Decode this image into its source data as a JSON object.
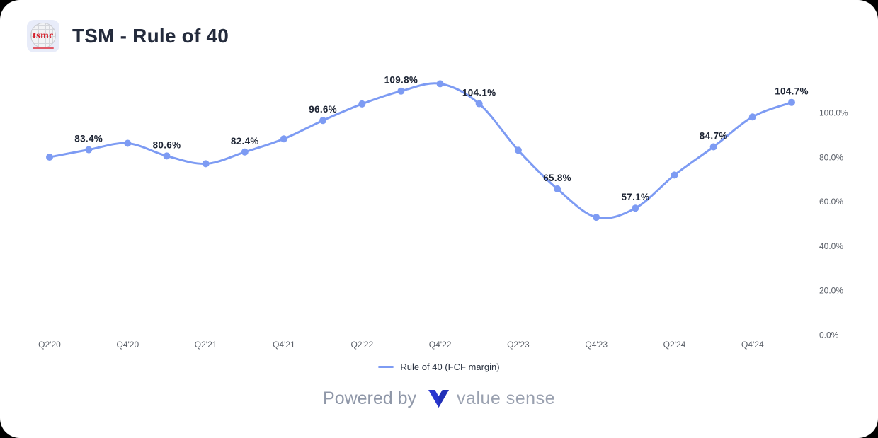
{
  "header": {
    "title": "TSM - Rule of 40",
    "logo_text": "tsmc"
  },
  "chart_data": {
    "type": "line",
    "title": "TSM - Rule of 40",
    "x": [
      "Q2'20",
      "Q3'20",
      "Q4'20",
      "Q1'21",
      "Q2'21",
      "Q3'21",
      "Q4'21",
      "Q1'22",
      "Q2'22",
      "Q3'22",
      "Q4'22",
      "Q1'23",
      "Q2'23",
      "Q3'23",
      "Q4'23",
      "Q1'24",
      "Q2'24",
      "Q3'24",
      "Q4'24",
      "Q1'25"
    ],
    "series": [
      {
        "name": "Rule of 40 (FCF margin)",
        "values": [
          80.1,
          83.4,
          86.3,
          80.6,
          77.1,
          82.4,
          88.3,
          96.6,
          104.0,
          109.8,
          113.1,
          104.1,
          83.2,
          65.8,
          53.0,
          57.1,
          72.0,
          84.7,
          98.2,
          104.7
        ],
        "point_labels": [
          "",
          "83.4%",
          "",
          "80.6%",
          "",
          "82.4%",
          "",
          "96.6%",
          "",
          "109.8%",
          "",
          "104.1%",
          "",
          "65.8%",
          "",
          "57.1%",
          "",
          "84.7%",
          "",
          "104.7%"
        ]
      }
    ],
    "x_tick_labels": [
      "Q2'20",
      "Q4'20",
      "Q2'21",
      "Q4'21",
      "Q2'22",
      "Q4'22",
      "Q2'23",
      "Q4'23",
      "Q2'24",
      "Q4'24"
    ],
    "x_tick_every": 2,
    "y_tick_labels": [
      "100.0%",
      "80.0%",
      "60.0%",
      "40.0%",
      "20.0%",
      "0.0%"
    ],
    "ylim": [
      0,
      119
    ],
    "y_axis_side": "right",
    "grid": false,
    "legend_position": "bottom",
    "line_color": "#7d9bf3",
    "label_color": "#1e2534",
    "axis_color": "#c9ccd2"
  },
  "legend": {
    "label": "Rule of 40 (FCF margin)"
  },
  "footer": {
    "powered_by": "Powered by",
    "brand": "value sense"
  }
}
